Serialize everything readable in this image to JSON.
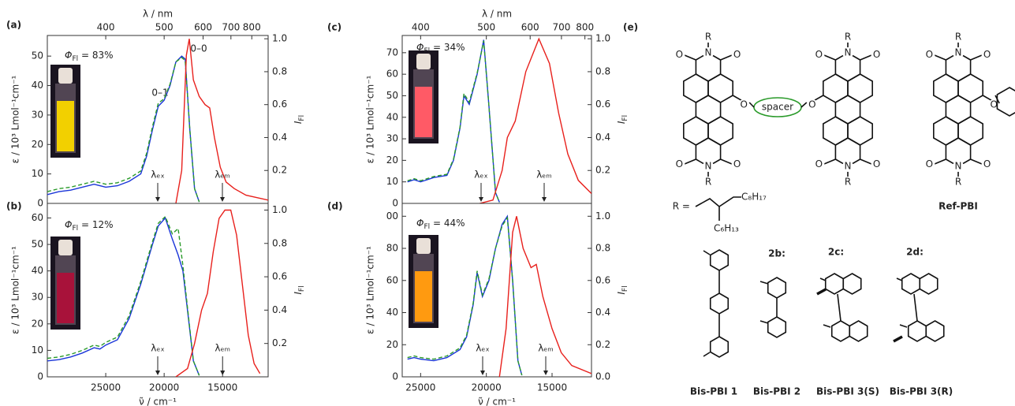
{
  "chart_data": [
    {
      "type": "line",
      "label": "(a)",
      "yield_symbol": "Φ",
      "yield_subscript": "Fl",
      "yield_text": " = 83%",
      "annotations": [
        "0–0",
        "0–1"
      ],
      "ylabel": "ε / 10³ Lmol⁻¹cm⁻¹",
      "y2label": "I",
      "y2label_subscript": "Fl",
      "x2label": "λ / nm",
      "xlim": [
        30000,
        11100
      ],
      "ylim": [
        0,
        57
      ],
      "y2lim": [
        0,
        1.02
      ],
      "yticks": [
        0,
        10,
        20,
        30,
        40,
        50
      ],
      "y2ticks": [
        0.2,
        0.4,
        0.6,
        0.8,
        {
          "value": 1,
          "label": "1.0"
        }
      ],
      "x2ticks": [
        400,
        500,
        600,
        700,
        800
      ],
      "markers": [
        {
          "label": "λₑₓ",
          "x": 20550,
          "color": "#e8201c"
        },
        {
          "label": "λₑₘ",
          "x": 15015,
          "color": "#2a9a2a"
        }
      ],
      "series": [
        {
          "color": "#1a35d8",
          "axis": "y",
          "x": [
            30000,
            29000,
            28000,
            27000,
            26000,
            25000,
            24000,
            23000,
            22000,
            21500,
            21000,
            20500,
            20000,
            19500,
            19000,
            18500,
            18200,
            17800,
            17400,
            17000
          ],
          "values": [
            3,
            4,
            4.5,
            5.5,
            6.5,
            5.5,
            6,
            7.5,
            10,
            16,
            25,
            33,
            35,
            40,
            48,
            50,
            49,
            25,
            5,
            0.5
          ]
        },
        {
          "color": "#2a9a2a",
          "axis": "y",
          "dash": true,
          "x": [
            30000,
            29000,
            28000,
            27000,
            26000,
            25000,
            24000,
            23000,
            22000,
            21500,
            21000,
            20500,
            20000,
            19500,
            19000,
            18500,
            18200,
            17800,
            17400,
            17000
          ],
          "values": [
            4,
            5,
            5.5,
            6.5,
            7.5,
            6.5,
            7,
            8.5,
            11,
            17,
            26,
            34,
            35.5,
            40.5,
            48,
            49.5,
            48.5,
            25,
            5,
            0.5
          ]
        },
        {
          "color": "#e8201c",
          "axis": "y2",
          "x": [
            19000,
            18500,
            18100,
            17850,
            17500,
            17000,
            16500,
            16100,
            15700,
            15200,
            14700,
            14000,
            13000,
            11100
          ],
          "values": [
            0,
            0.2,
            0.9,
            1.0,
            0.75,
            0.65,
            0.6,
            0.58,
            0.4,
            0.22,
            0.13,
            0.09,
            0.05,
            0.02
          ]
        }
      ]
    },
    {
      "type": "line",
      "label": "(b)",
      "yield_symbol": "Φ",
      "yield_subscript": "Fl",
      "yield_text": " = 12%",
      "ylabel": "ε / 10³ Lmol⁻¹cm⁻¹",
      "y2label": "I",
      "y2label_subscript": "Fl",
      "xlabel": "ν̃ / cm⁻¹",
      "xlim": [
        30000,
        11100
      ],
      "ylim": [
        0,
        65.5
      ],
      "y2lim": [
        0,
        1.04
      ],
      "yticks": [
        0,
        10,
        20,
        30,
        40,
        50,
        60
      ],
      "y2ticks": [
        0.2,
        0.4,
        0.6,
        0.8,
        {
          "value": 1,
          "label": "1.0"
        }
      ],
      "xticks": [
        25000,
        20000,
        15000
      ],
      "markers": [
        {
          "label": "λₑₓ",
          "x": 20550,
          "color": "#e8201c"
        },
        {
          "label": "λₑₘ",
          "x": 15000,
          "color": "#2a9a2a"
        }
      ],
      "series": [
        {
          "color": "#1a35d8",
          "axis": "y",
          "x": [
            30000,
            29000,
            28000,
            27000,
            26000,
            25500,
            25000,
            24000,
            23000,
            22000,
            21000,
            20500,
            19900,
            19300,
            18800,
            18400,
            18000,
            17500,
            17000
          ],
          "values": [
            6,
            6.5,
            7.5,
            9,
            11,
            10.5,
            12,
            14,
            22,
            35,
            50,
            57,
            60,
            52,
            46,
            40,
            25,
            6,
            0.5
          ]
        },
        {
          "color": "#2a9a2a",
          "axis": "y",
          "dash": true,
          "x": [
            30000,
            29000,
            28000,
            27000,
            26000,
            25500,
            25000,
            24000,
            23000,
            22000,
            21000,
            20500,
            19900,
            19300,
            18800,
            18400,
            18000,
            17500,
            17000
          ],
          "values": [
            7,
            7.5,
            8.5,
            10,
            12,
            11.5,
            13,
            15,
            23,
            36,
            51,
            58,
            60.5,
            54,
            56,
            42,
            26,
            6,
            0.5
          ]
        },
        {
          "color": "#e8201c",
          "axis": "y2",
          "x": [
            19000,
            18000,
            17400,
            16800,
            16300,
            15800,
            15300,
            14800,
            14300,
            13800,
            13300,
            12800,
            12300,
            11800
          ],
          "values": [
            0,
            0.05,
            0.2,
            0.4,
            0.5,
            0.75,
            0.95,
            1.0,
            1.0,
            0.85,
            0.55,
            0.25,
            0.08,
            0.02
          ]
        }
      ]
    },
    {
      "type": "line",
      "label": "(c)",
      "yield_symbol": "Φ",
      "yield_subscript": "Fl",
      "yield_text": " = 34%",
      "ylabel": "ε / 10³ Lmol⁻¹cm⁻¹",
      "y2label": "I",
      "y2label_subscript": "Fl",
      "x2label": "λ / nm",
      "xlim": [
        26400,
        12000
      ],
      "ylim": [
        0,
        78
      ],
      "y2lim": [
        0,
        1.02
      ],
      "yticks": [
        0,
        10,
        20,
        30,
        40,
        50,
        60,
        70
      ],
      "y2ticks": [
        0.2,
        0.4,
        0.6,
        0.8,
        {
          "value": 1,
          "label": "1.0"
        }
      ],
      "x2ticks": [
        400,
        500,
        600,
        700,
        800
      ],
      "markers": [
        {
          "label": "λₑₓ",
          "x": 20400,
          "color": "#e8201c"
        },
        {
          "label": "λₑₘ",
          "x": 15600,
          "color": "#2a9a2a"
        }
      ],
      "series": [
        {
          "color": "#1a35d8",
          "axis": "y",
          "x": [
            26000,
            25500,
            25000,
            24500,
            24000,
            23000,
            22500,
            22000,
            21700,
            21300,
            20700,
            20200,
            19800,
            19300,
            19000
          ],
          "values": [
            10,
            11,
            10,
            11,
            12,
            13,
            20,
            35,
            50,
            46,
            60,
            76,
            45,
            5,
            0.5
          ]
        },
        {
          "color": "#2a9a2a",
          "axis": "y",
          "dash": true,
          "x": [
            26000,
            25500,
            25000,
            24500,
            24000,
            23000,
            22500,
            22000,
            21700,
            21300,
            20700,
            20200,
            19800,
            19300,
            19000
          ],
          "values": [
            10.5,
            11.5,
            10.5,
            11.5,
            12.5,
            13.5,
            20.5,
            35.5,
            51,
            47,
            60.5,
            75.5,
            45,
            5,
            0.5
          ]
        },
        {
          "color": "#e8201c",
          "axis": "y2",
          "x": [
            20500,
            19500,
            18800,
            18400,
            17800,
            17000,
            16000,
            15200,
            14500,
            13800,
            13000,
            12000
          ],
          "values": [
            0,
            0.02,
            0.2,
            0.4,
            0.5,
            0.8,
            1.0,
            0.85,
            0.55,
            0.3,
            0.14,
            0.06
          ]
        }
      ]
    },
    {
      "type": "line",
      "label": "(d)",
      "yield_symbol": "Φ",
      "yield_subscript": "Fl",
      "yield_text": " = 44%",
      "ylabel": "ε / 10³ Lmol⁻¹cm⁻¹",
      "y2label": "I",
      "y2label_subscript": "Fl",
      "xlabel": "ν̃ / cm⁻¹",
      "xlim": [
        26400,
        12000
      ],
      "ylim": [
        0,
        108
      ],
      "y2lim": [
        0,
        1.08
      ],
      "yticks": [
        0,
        20,
        40,
        60,
        80,
        {
          "value": 100,
          "label": "00"
        }
      ],
      "y2ticks": [
        {
          "value": 0,
          "label": "0.0"
        },
        0.2,
        0.4,
        0.6,
        0.8,
        {
          "value": 1,
          "label": "1.0"
        }
      ],
      "xticks": [
        25000,
        20000,
        15000
      ],
      "markers": [
        {
          "label": "λₑₓ",
          "x": 20280,
          "color": "#e8201c"
        },
        {
          "label": "λₑₘ",
          "x": 15480,
          "color": "#2a9a2a"
        }
      ],
      "series": [
        {
          "color": "#1a35d8",
          "axis": "y",
          "x": [
            26000,
            25500,
            25000,
            24000,
            23000,
            22000,
            21500,
            21000,
            20700,
            20300,
            19800,
            19300,
            18800,
            18400,
            18000,
            17600,
            17300
          ],
          "values": [
            11,
            12,
            11,
            10,
            12,
            17,
            25,
            45,
            65,
            50,
            60,
            80,
            95,
            100,
            60,
            10,
            1
          ]
        },
        {
          "color": "#2a9a2a",
          "axis": "y",
          "dash": true,
          "x": [
            26000,
            25500,
            25000,
            24000,
            23000,
            22000,
            21500,
            21000,
            20700,
            20300,
            19800,
            19300,
            18800,
            18400,
            18000,
            17600,
            17300
          ],
          "values": [
            12,
            13,
            12,
            11,
            13,
            18,
            26,
            46,
            66,
            51,
            61,
            80,
            94,
            99,
            60,
            10,
            1
          ]
        },
        {
          "color": "#e8201c",
          "axis": "y2",
          "x": [
            19000,
            18500,
            18000,
            17700,
            17200,
            16600,
            16200,
            15700,
            15000,
            14300,
            13500,
            12000
          ],
          "values": [
            0,
            0.3,
            0.9,
            1.0,
            0.8,
            0.68,
            0.7,
            0.5,
            0.3,
            0.15,
            0.07,
            0.02
          ]
        }
      ]
    }
  ],
  "structures": {
    "label": "(e)",
    "atoms": {
      "N": "N",
      "O": "O",
      "R": "R"
    },
    "spacer": "spacer",
    "r_definition": "R =",
    "branch_1": "C₈H₁₇",
    "branch_2": "C₆H₁₃",
    "reference": "Ref-PBI",
    "sub_labels": [
      "2b:",
      "2c:",
      "2d:"
    ],
    "compounds": [
      "Bis-PBI 1",
      "Bis-PBI 2",
      "Bis-PBI 3(S)",
      "Bis-PBI 3(R)"
    ]
  }
}
